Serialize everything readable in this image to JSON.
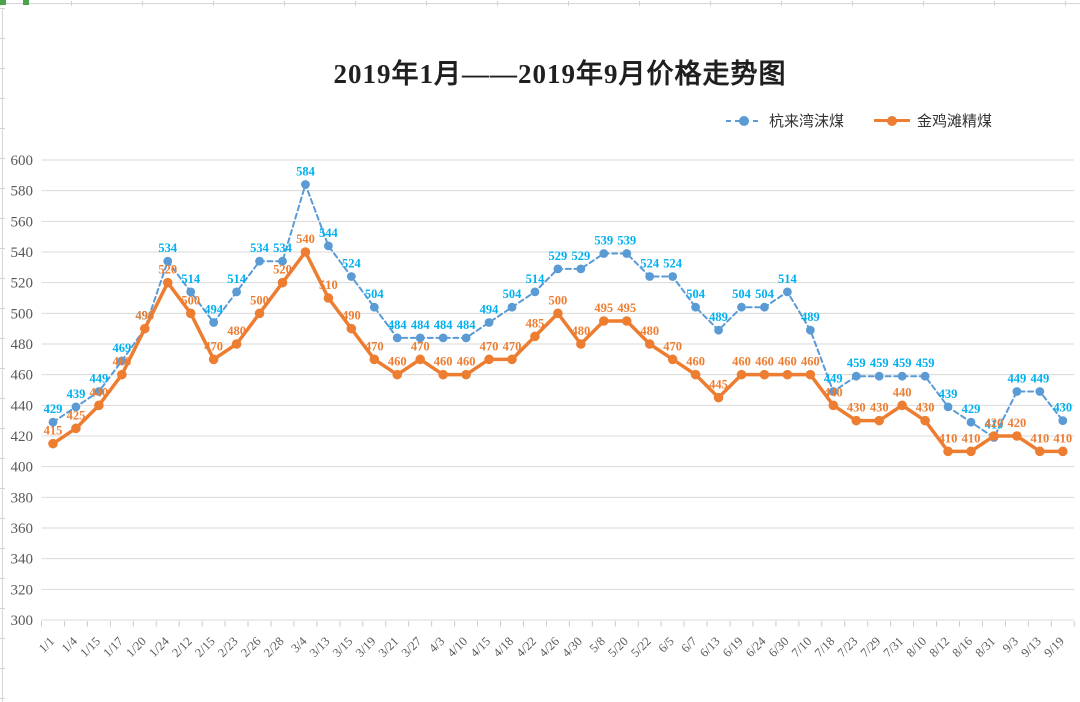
{
  "title": "2019年1月——2019年9月价格走势图",
  "legend": [
    {
      "label": "杭来湾沫煤",
      "color": "#5B9BD5",
      "style": "dashed"
    },
    {
      "label": "金鸡滩精煤",
      "color": "#ED7D31",
      "style": "solid"
    }
  ],
  "colors": {
    "series1_line": "#5B9BD5",
    "series1_label": "#00B0F0",
    "series2_line": "#ED7D31",
    "series2_label": "#ED7D31",
    "gridline": "#D9D9D9",
    "axis_text": "#595959",
    "title_text": "#1F1F1F",
    "sheet_edge": "#D6D6D6",
    "sheet_accent_green": "#4AA34A"
  },
  "chart_data": {
    "type": "line",
    "title": "2019年1月——2019年9月价格走势图",
    "categories": [
      "1/1",
      "1/4",
      "1/15",
      "1/17",
      "1/20",
      "1/24",
      "2/12",
      "2/15",
      "2/23",
      "2/26",
      "2/28",
      "3/4",
      "3/13",
      "3/15",
      "3/19",
      "3/21",
      "3/27",
      "4/3",
      "4/10",
      "4/15",
      "4/18",
      "4/22",
      "4/26",
      "4/30",
      "5/8",
      "5/20",
      "5/22",
      "6/5",
      "6/7",
      "6/13",
      "6/19",
      "6/24",
      "6/30",
      "7/10",
      "7/18",
      "7/23",
      "7/29",
      "7/31",
      "8/10",
      "8/12",
      "8/16",
      "8/31",
      "9/3",
      "9/13",
      "9/19"
    ],
    "series": [
      {
        "name": "杭来湾沫煤",
        "color": "#5B9BD5",
        "label_color": "#00B0F0",
        "line_style": "dashed",
        "values": [
          429,
          439,
          449,
          469,
          490,
          534,
          514,
          494,
          514,
          534,
          534,
          584,
          544,
          524,
          504,
          484,
          484,
          484,
          484,
          494,
          504,
          514,
          529,
          529,
          539,
          539,
          524,
          524,
          504,
          489,
          504,
          504,
          514,
          489,
          449,
          459,
          459,
          459,
          459,
          439,
          429,
          419,
          449,
          449,
          430
        ]
      },
      {
        "name": "金鸡滩精煤",
        "color": "#ED7D31",
        "label_color": "#ED7D31",
        "line_style": "solid",
        "values": [
          415,
          425,
          440,
          460,
          490,
          520,
          500,
          470,
          480,
          500,
          520,
          540,
          510,
          490,
          470,
          460,
          470,
          460,
          460,
          470,
          470,
          485,
          500,
          480,
          495,
          495,
          480,
          470,
          460,
          445,
          460,
          460,
          460,
          460,
          440,
          430,
          430,
          440,
          430,
          410,
          410,
          420,
          420,
          410,
          410
        ]
      }
    ],
    "ylim": [
      300,
      600
    ],
    "ytick_step": 20,
    "grid": true,
    "data_labels": true,
    "x_labels_rotation": 45,
    "legend_position": "top-right"
  }
}
